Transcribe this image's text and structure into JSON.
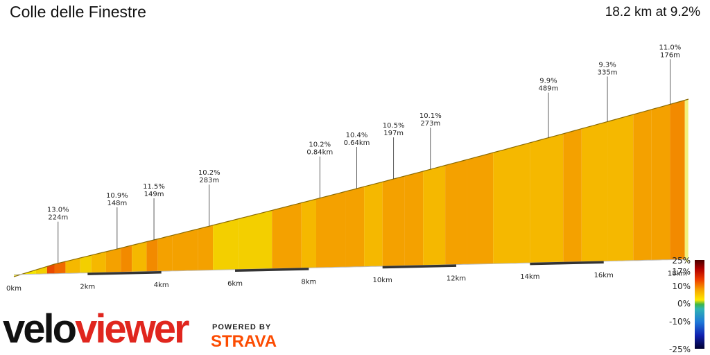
{
  "header": {
    "title": "Colle delle Finestre",
    "summary": "18.2 km at 9.2%"
  },
  "brand": {
    "name_part1": "velo",
    "name_part2": "viewer",
    "powered_by": "POWERED BY",
    "partner": "STRAVA"
  },
  "legend": {
    "labels": [
      "25%",
      "17%",
      "10%",
      "0%",
      "-10%",
      "-25%"
    ],
    "values": [
      25,
      17,
      10,
      0,
      -10,
      -25
    ]
  },
  "chart_data": {
    "type": "area",
    "title": "Colle delle Finestre",
    "xlabel": "",
    "ylabel": "",
    "xlim": [
      0,
      18.3
    ],
    "x_ticks": [
      "0km",
      "2km",
      "4km",
      "6km",
      "8km",
      "10km",
      "12km",
      "14km",
      "16km",
      "18km"
    ],
    "x_tick_values": [
      0,
      2,
      4,
      6,
      8,
      10,
      12,
      14,
      16,
      18
    ],
    "total_distance_km": 18.2,
    "average_gradient_pct": 9.2,
    "profile_x_km": [
      0,
      0.2,
      0.6,
      0.9,
      1.1,
      1.4,
      1.8,
      2.1,
      2.5,
      2.9,
      3.2,
      3.6,
      3.9,
      4.3,
      5.0,
      5.4,
      6.1,
      7.0,
      7.8,
      8.2,
      9.0,
      9.5,
      10.0,
      10.6,
      11.1,
      11.7,
      12.3,
      13.0,
      14.0,
      14.9,
      15.4,
      16.1,
      16.8,
      17.3,
      17.8,
      18.2
    ],
    "profile_gradient_pct": [
      4,
      6,
      8,
      13,
      12,
      9,
      8,
      9,
      10,
      11,
      9,
      11,
      10,
      10,
      10,
      8,
      8,
      10,
      9,
      10,
      10,
      9,
      10,
      10,
      9,
      10,
      10,
      9,
      9,
      10,
      9,
      9,
      10,
      10,
      11,
      9
    ],
    "annotations": [
      {
        "x_km": 1.2,
        "gradient": "13.0%",
        "length": "224m"
      },
      {
        "x_km": 2.8,
        "gradient": "10.9%",
        "length": "148m"
      },
      {
        "x_km": 3.8,
        "gradient": "11.5%",
        "length": "149m"
      },
      {
        "x_km": 5.3,
        "gradient": "10.2%",
        "length": "283m"
      },
      {
        "x_km": 8.3,
        "gradient": "10.2%",
        "length": "0.84km"
      },
      {
        "x_km": 9.3,
        "gradient": "10.4%",
        "length": "0.64km"
      },
      {
        "x_km": 10.3,
        "gradient": "10.5%",
        "length": "197m"
      },
      {
        "x_km": 11.3,
        "gradient": "10.1%",
        "length": "273m"
      },
      {
        "x_km": 14.5,
        "gradient": "9.9%",
        "length": "489m"
      },
      {
        "x_km": 16.1,
        "gradient": "9.3%",
        "length": "335m"
      },
      {
        "x_km": 17.8,
        "gradient": "11.0%",
        "length": "176m"
      }
    ]
  }
}
